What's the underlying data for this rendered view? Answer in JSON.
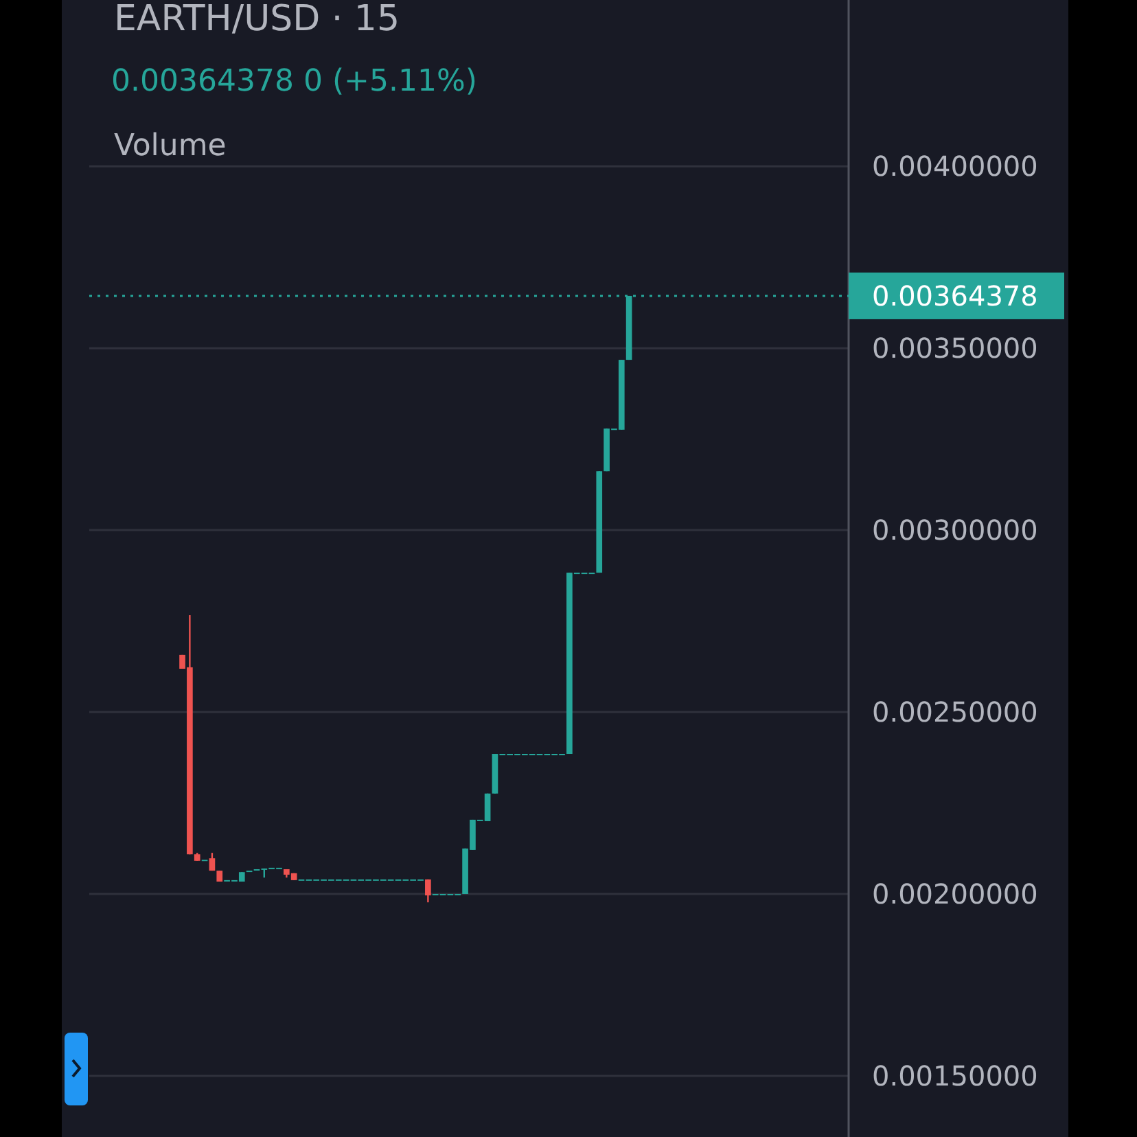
{
  "chart_data": {
    "type": "candlestick",
    "title": "EARTH/USD · 15",
    "subtitle": "0.00364378 0 (+5.11%)",
    "annotations": [
      "Volume"
    ],
    "categories": [
      null,
      null,
      null,
      null,
      null,
      null,
      null,
      null,
      null,
      null,
      null,
      null,
      null,
      null,
      null,
      null,
      null,
      null,
      null,
      null,
      null,
      null,
      null,
      null,
      null,
      null,
      null,
      null,
      null,
      null,
      null,
      null,
      null,
      null,
      null,
      null,
      null,
      null,
      null,
      null,
      null,
      null,
      null,
      null,
      null,
      null,
      null,
      null,
      null,
      null,
      null,
      null,
      null,
      null,
      null,
      null,
      null,
      null,
      null,
      null,
      null,
      null,
      null,
      null,
      null,
      null,
      null,
      null,
      null,
      null,
      null,
      null,
      null,
      null,
      null,
      null,
      null,
      null,
      null,
      null,
      null,
      null,
      null,
      null,
      null,
      null,
      null,
      null,
      null,
      null,
      null,
      null,
      null,
      null,
      null,
      null,
      null,
      null,
      null,
      null,
      null,
      null
    ],
    "ohlc": [
      null,
      null,
      null,
      null,
      null,
      null,
      null,
      null,
      null,
      null,
      null,
      null,
      [
        0.002657,
        0.002657,
        0.002619,
        0.002619
      ],
      [
        0.002623,
        0.002766,
        0.002109,
        0.002109
      ],
      [
        0.002109,
        0.002113,
        0.002091,
        0.002091
      ],
      [
        0.002094,
        0.002094,
        0.002094,
        0.002094
      ],
      [
        0.002098,
        0.002113,
        0.002064,
        0.002064
      ],
      [
        0.002064,
        0.002064,
        0.002034,
        0.002034
      ],
      [
        0.002038,
        0.002038,
        0.002038,
        0.002038
      ],
      [
        0.002038,
        0.002038,
        0.002038,
        0.002038
      ],
      [
        0.002034,
        0.00206,
        0.002034,
        0.00206
      ],
      [
        0.002064,
        0.002064,
        0.002064,
        0.002064
      ],
      [
        0.002068,
        0.002068,
        0.002068,
        0.002068
      ],
      [
        0.002068,
        0.00207,
        0.002045,
        0.00207
      ],
      [
        0.002072,
        0.002072,
        0.002072,
        0.002072
      ],
      [
        0.002072,
        0.002072,
        0.002072,
        0.002072
      ],
      [
        0.002068,
        0.002068,
        0.002045,
        0.002053
      ],
      [
        0.002057,
        0.002057,
        0.002038,
        0.002038
      ],
      [
        0.00204,
        0.00204,
        0.00204,
        0.00204
      ],
      [
        0.00204,
        0.00204,
        0.00204,
        0.00204
      ],
      [
        0.00204,
        0.00204,
        0.00204,
        0.00204
      ],
      [
        0.00204,
        0.00204,
        0.00204,
        0.00204
      ],
      [
        0.00204,
        0.00204,
        0.00204,
        0.00204
      ],
      [
        0.00204,
        0.00204,
        0.00204,
        0.00204
      ],
      [
        0.00204,
        0.00204,
        0.00204,
        0.00204
      ],
      [
        0.00204,
        0.00204,
        0.00204,
        0.00204
      ],
      [
        0.00204,
        0.00204,
        0.00204,
        0.00204
      ],
      [
        0.00204,
        0.00204,
        0.00204,
        0.00204
      ],
      [
        0.00204,
        0.00204,
        0.00204,
        0.00204
      ],
      [
        0.00204,
        0.00204,
        0.00204,
        0.00204
      ],
      [
        0.00204,
        0.00204,
        0.00204,
        0.00204
      ],
      [
        0.00204,
        0.00204,
        0.00204,
        0.00204
      ],
      [
        0.00204,
        0.00204,
        0.00204,
        0.00204
      ],
      [
        0.00204,
        0.00204,
        0.00204,
        0.00204
      ],
      [
        0.00204,
        0.00204,
        0.00204,
        0.00204
      ],
      [
        0.00204,
        0.00204,
        0.001977,
        0.001996
      ],
      [
        0.002,
        0.002,
        0.002,
        0.002
      ],
      [
        0.002,
        0.002,
        0.002,
        0.002
      ],
      [
        0.002,
        0.002,
        0.002,
        0.002
      ],
      [
        0.001998,
        0.002,
        0.001998,
        0.002
      ],
      [
        0.002,
        0.002125,
        0.002,
        0.002125
      ],
      [
        0.002121,
        0.002204,
        0.002121,
        0.002204
      ],
      [
        0.002204,
        0.002204,
        0.002204,
        0.002204
      ],
      [
        0.0022,
        0.002276,
        0.0022,
        0.002276
      ],
      [
        0.002276,
        0.002385,
        0.002276,
        0.002385
      ],
      [
        0.002385,
        0.002385,
        0.002385,
        0.002385
      ],
      [
        0.002385,
        0.002385,
        0.002385,
        0.002385
      ],
      [
        0.002385,
        0.002385,
        0.002385,
        0.002385
      ],
      [
        0.002385,
        0.002385,
        0.002385,
        0.002385
      ],
      [
        0.002385,
        0.002385,
        0.002385,
        0.002385
      ],
      [
        0.002385,
        0.002385,
        0.002385,
        0.002385
      ],
      [
        0.002385,
        0.002385,
        0.002385,
        0.002385
      ],
      [
        0.002385,
        0.002385,
        0.002385,
        0.002385
      ],
      [
        0.002385,
        0.002385,
        0.002385,
        0.002385
      ],
      [
        0.002385,
        0.002883,
        0.002385,
        0.002883
      ],
      [
        0.002883,
        0.002883,
        0.002883,
        0.002883
      ],
      [
        0.002883,
        0.002883,
        0.002883,
        0.002883
      ],
      [
        0.002883,
        0.002883,
        0.002883,
        0.002883
      ],
      [
        0.002883,
        0.003162,
        0.002883,
        0.003162
      ],
      [
        0.003162,
        0.003279,
        0.003162,
        0.003279
      ],
      [
        0.003279,
        0.003279,
        0.003279,
        0.003279
      ],
      [
        0.003276,
        0.003468,
        0.003276,
        0.003468
      ],
      [
        0.003468,
        0.00364378,
        0.003468,
        0.00364378
      ],
      null,
      null,
      null,
      null,
      null,
      null,
      null,
      null,
      null,
      null,
      null,
      null,
      null,
      null,
      null,
      null,
      null,
      null,
      null,
      null,
      null,
      null,
      null,
      null,
      null,
      null,
      null,
      null,
      null
    ],
    "colors": [
      null,
      null,
      null,
      null,
      null,
      null,
      null,
      null,
      null,
      null,
      null,
      null,
      "#ef5350",
      "#ef5350",
      "#ef5350",
      "#26a69a",
      "#ef5350",
      "#ef5350",
      "#26a69a",
      "#26a69a",
      "#26a69a",
      "#26a69a",
      "#26a69a",
      "#26a69a",
      "#26a69a",
      "#26a69a",
      "#ef5350",
      "#ef5350",
      "#26a69a",
      "#26a69a",
      "#26a69a",
      "#26a69a",
      "#26a69a",
      "#26a69a",
      "#26a69a",
      "#26a69a",
      "#26a69a",
      "#26a69a",
      "#26a69a",
      "#26a69a",
      "#26a69a",
      "#26a69a",
      "#26a69a",
      "#26a69a",
      "#26a69a",
      "#ef5350",
      "#26a69a",
      "#26a69a",
      "#26a69a",
      "#26a69a",
      "#26a69a",
      "#26a69a",
      "#26a69a",
      "#26a69a",
      "#26a69a",
      "#26a69a",
      "#26a69a",
      "#26a69a",
      "#26a69a",
      "#26a69a",
      "#26a69a",
      "#26a69a",
      "#26a69a",
      "#26a69a",
      "#26a69a",
      "#26a69a",
      "#26a69a",
      "#26a69a",
      "#26a69a",
      "#26a69a",
      "#26a69a",
      "#26a69a",
      "#26a69a",
      null,
      null,
      null,
      null,
      null,
      null,
      null,
      null,
      null,
      null,
      null,
      null,
      null,
      null,
      null,
      null,
      null,
      null,
      null,
      null,
      null,
      null,
      null,
      null,
      null,
      null,
      null,
      null,
      null
    ],
    "ylim": [
      0.001332,
      0.004457
    ],
    "yticks": [
      {
        "value": 0.0015,
        "label": "0.00150000"
      },
      {
        "value": 0.002,
        "label": "0.00200000"
      },
      {
        "value": 0.0025,
        "label": "0.00250000"
      },
      {
        "value": 0.003,
        "label": "0.00300000"
      },
      {
        "value": 0.0035,
        "label": "0.00350000"
      },
      {
        "value": 0.004,
        "label": "0.00400000"
      }
    ],
    "tick_labels": "y",
    "grid": "y",
    "ref_lines": [
      {
        "axis": "y",
        "value": 0.00364378,
        "label": "0.00364378",
        "color": "#26a69a",
        "line_style": "dotted"
      }
    ]
  }
}
